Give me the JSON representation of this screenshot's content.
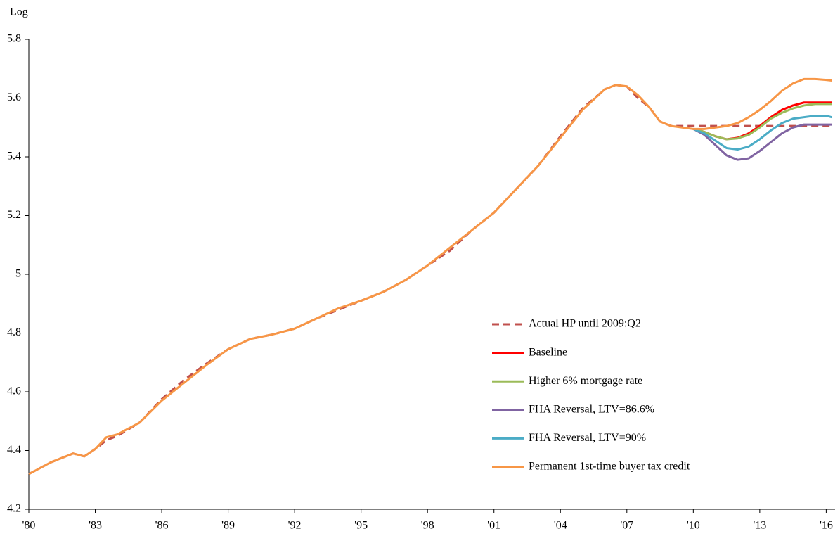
{
  "chart_data": {
    "type": "line",
    "ylabel": "Log",
    "xlim": [
      1980,
      2016.4
    ],
    "ylim": [
      4.2,
      5.8
    ],
    "xticks": [
      {
        "value": 1980,
        "label": "'80"
      },
      {
        "value": 1983,
        "label": "'83"
      },
      {
        "value": 1986,
        "label": "'86"
      },
      {
        "value": 1989,
        "label": "'89"
      },
      {
        "value": 1992,
        "label": "'92"
      },
      {
        "value": 1995,
        "label": "'95"
      },
      {
        "value": 1998,
        "label": "'98"
      },
      {
        "value": 2001,
        "label": "'01"
      },
      {
        "value": 2004,
        "label": "'04"
      },
      {
        "value": 2007,
        "label": "'07"
      },
      {
        "value": 2010,
        "label": "'10"
      },
      {
        "value": 2013,
        "label": "'13"
      },
      {
        "value": 2016,
        "label": "'16"
      }
    ],
    "yticks": [
      4.2,
      4.4,
      4.6,
      4.8,
      5,
      5.2,
      5.4,
      5.6,
      5.8
    ],
    "grid": false,
    "legend": "lower right",
    "x": [
      1980,
      1981,
      1982,
      1982.5,
      1983,
      1983.5,
      1984,
      1985,
      1986,
      1987,
      1988,
      1989,
      1990,
      1991,
      1992,
      1993,
      1994,
      1995,
      1996,
      1997,
      1998,
      1999,
      2000,
      2001,
      2002,
      2003,
      2004,
      2005,
      2006,
      2006.5,
      2007,
      2007.5,
      2008,
      2008.5,
      2009,
      2009.5,
      2010,
      2010.5,
      2011,
      2011.5,
      2012,
      2012.5,
      2013,
      2013.5,
      2014,
      2014.5,
      2015,
      2015.5,
      2016,
      2016.25
    ],
    "series": [
      {
        "name": "Actual HP until 2009:Q2",
        "color": "#c0504d",
        "line_style": "dashed",
        "values": [
          4.32,
          4.36,
          4.39,
          4.38,
          4.405,
          4.435,
          4.45,
          4.495,
          4.575,
          4.64,
          4.695,
          4.745,
          4.78,
          4.795,
          4.815,
          4.85,
          4.88,
          4.91,
          4.94,
          4.98,
          5.03,
          5.08,
          5.15,
          5.21,
          5.29,
          5.37,
          5.47,
          5.565,
          5.63,
          5.645,
          5.64,
          5.6,
          5.57,
          5.52,
          5.505,
          5.505,
          5.505,
          5.505,
          5.505,
          5.505,
          5.505,
          5.505,
          5.505,
          5.505,
          5.505,
          5.505,
          5.505,
          5.505,
          5.505,
          5.505
        ]
      },
      {
        "name": "Baseline",
        "color": "#ff0000",
        "values": [
          null,
          null,
          null,
          null,
          null,
          null,
          null,
          null,
          null,
          null,
          null,
          null,
          null,
          null,
          null,
          null,
          null,
          null,
          null,
          null,
          null,
          null,
          null,
          null,
          null,
          null,
          null,
          null,
          null,
          null,
          null,
          null,
          null,
          null,
          null,
          null,
          5.495,
          5.485,
          5.47,
          5.46,
          5.465,
          5.48,
          5.505,
          5.535,
          5.56,
          5.575,
          5.585,
          5.585,
          5.585,
          5.585
        ]
      },
      {
        "name": "Higher 6% mortgage rate",
        "color": "#9bbb59",
        "values": [
          null,
          null,
          null,
          null,
          null,
          null,
          null,
          null,
          null,
          null,
          null,
          null,
          null,
          null,
          null,
          null,
          null,
          null,
          null,
          null,
          null,
          null,
          null,
          null,
          null,
          null,
          null,
          null,
          null,
          null,
          null,
          null,
          null,
          null,
          null,
          null,
          5.495,
          5.485,
          5.47,
          5.46,
          5.463,
          5.475,
          5.5,
          5.53,
          5.55,
          5.565,
          5.575,
          5.58,
          5.58,
          5.58
        ]
      },
      {
        "name": "FHA Reversal, LTV=86.6%",
        "color": "#8064a2",
        "values": [
          null,
          null,
          null,
          null,
          null,
          null,
          null,
          null,
          null,
          null,
          null,
          null,
          null,
          null,
          null,
          null,
          null,
          null,
          null,
          null,
          null,
          null,
          null,
          null,
          null,
          null,
          null,
          null,
          null,
          null,
          null,
          null,
          null,
          null,
          null,
          null,
          5.495,
          5.475,
          5.44,
          5.405,
          5.39,
          5.395,
          5.42,
          5.45,
          5.48,
          5.5,
          5.51,
          5.51,
          5.51,
          5.51
        ]
      },
      {
        "name": "FHA Reversal, LTV=90%",
        "color": "#4bacc6",
        "values": [
          null,
          null,
          null,
          null,
          null,
          null,
          null,
          null,
          null,
          null,
          null,
          null,
          null,
          null,
          null,
          null,
          null,
          null,
          null,
          null,
          null,
          null,
          null,
          null,
          null,
          null,
          null,
          null,
          null,
          null,
          null,
          null,
          null,
          null,
          null,
          null,
          5.495,
          5.48,
          5.455,
          5.43,
          5.425,
          5.435,
          5.46,
          5.49,
          5.515,
          5.53,
          5.535,
          5.54,
          5.54,
          5.535
        ]
      },
      {
        "name": "Permanent 1st-time buyer tax credit",
        "color": "#f79646",
        "values": [
          4.32,
          4.36,
          4.39,
          4.38,
          4.405,
          4.445,
          4.455,
          4.495,
          4.57,
          4.63,
          4.69,
          4.745,
          4.78,
          4.795,
          4.815,
          4.85,
          4.885,
          4.91,
          4.94,
          4.98,
          5.03,
          5.09,
          5.15,
          5.21,
          5.29,
          5.37,
          5.465,
          5.56,
          5.63,
          5.645,
          5.64,
          5.61,
          5.57,
          5.52,
          5.505,
          5.5,
          5.495,
          5.495,
          5.5,
          5.505,
          5.515,
          5.535,
          5.56,
          5.59,
          5.625,
          5.65,
          5.665,
          5.665,
          5.662,
          5.66
        ]
      }
    ]
  }
}
